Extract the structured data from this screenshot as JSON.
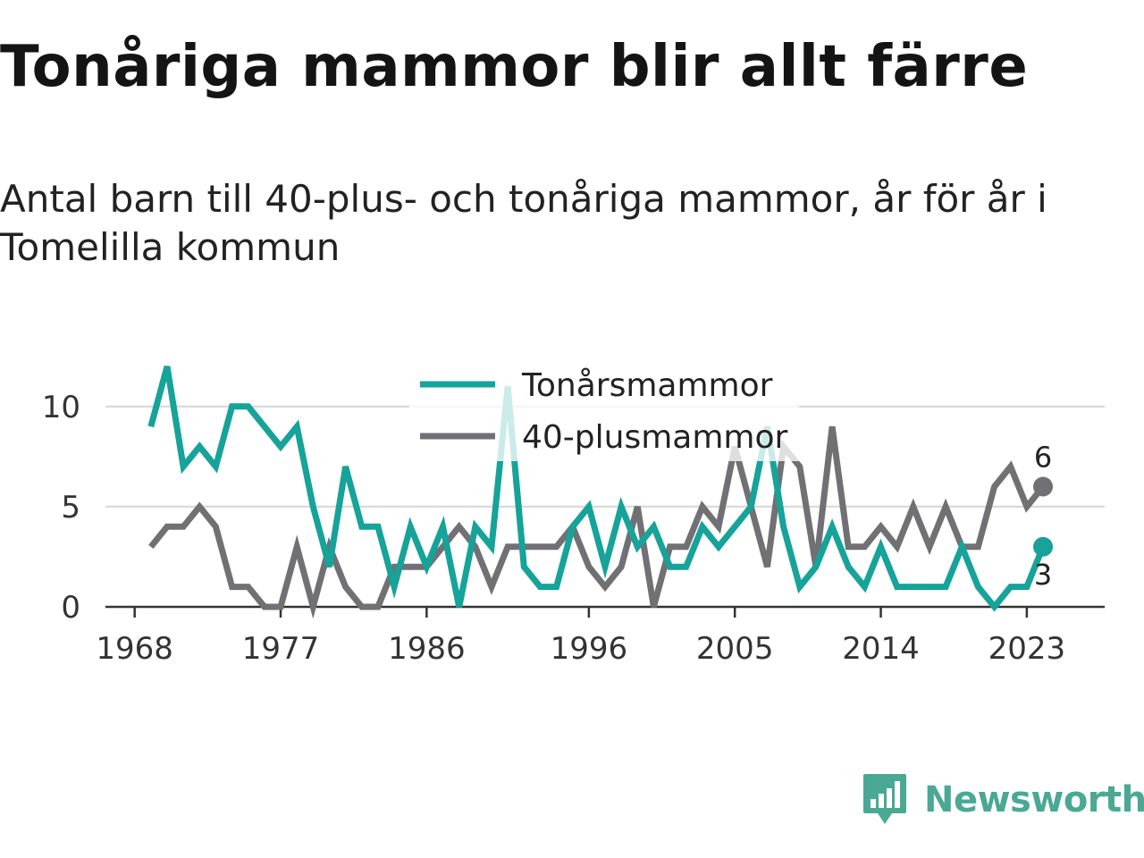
{
  "header": {
    "title": "Tonåriga mammor blir allt färre",
    "subtitle": "Antal barn till 40-plus- och tonåriga mammor, år för år i Tomelilla kommun"
  },
  "brand": {
    "name": "Newsworthy",
    "logo_icon": "bar-chart-badge-icon",
    "color": "#4aa894"
  },
  "chart_data": {
    "type": "line",
    "x": [
      1969,
      1970,
      1971,
      1972,
      1973,
      1974,
      1975,
      1976,
      1977,
      1978,
      1979,
      1980,
      1981,
      1982,
      1983,
      1984,
      1985,
      1986,
      1987,
      1988,
      1989,
      1990,
      1991,
      1992,
      1993,
      1994,
      1995,
      1996,
      1997,
      1998,
      1999,
      2000,
      2001,
      2002,
      2003,
      2004,
      2005,
      2006,
      2007,
      2008,
      2009,
      2010,
      2011,
      2012,
      2013,
      2014,
      2015,
      2016,
      2017,
      2018,
      2019,
      2020,
      2021,
      2022,
      2023,
      2024
    ],
    "x_ticks": [
      "1968",
      "1977",
      "1986",
      "1996",
      "2005",
      "2014",
      "2023"
    ],
    "x_tick_values": [
      1968,
      1977,
      1986,
      1996,
      2005,
      2014,
      2023
    ],
    "y_ticks": [
      "0",
      "5",
      "10"
    ],
    "y_tick_values": [
      0,
      5,
      10
    ],
    "ylim": [
      0,
      12
    ],
    "xlim": [
      1966.2,
      2027.8
    ],
    "grid": true,
    "legend_position": "top-center",
    "series": [
      {
        "name": "Tonårsmammor",
        "color": "#16a399",
        "values": [
          9,
          12,
          7,
          8,
          7,
          10,
          10,
          9,
          8,
          9,
          5,
          2,
          7,
          4,
          4,
          1,
          4,
          2,
          4,
          0,
          4,
          3,
          11,
          2,
          1,
          1,
          4,
          5,
          2,
          5,
          3,
          4,
          2,
          2,
          4,
          3,
          4,
          5,
          9,
          4,
          1,
          2,
          4,
          2,
          1,
          3,
          1,
          1,
          1,
          1,
          3,
          1,
          0,
          1,
          1,
          3
        ],
        "end_label": "3"
      },
      {
        "name": "40-plusmammor",
        "color": "#707075",
        "values": [
          3,
          4,
          4,
          5,
          4,
          1,
          1,
          0,
          0,
          3,
          0,
          3,
          1,
          0,
          0,
          2,
          2,
          2,
          3,
          4,
          3,
          1,
          3,
          3,
          3,
          3,
          4,
          2,
          1,
          2,
          5,
          0,
          3,
          3,
          5,
          4,
          8,
          5,
          2,
          8,
          7,
          2,
          9,
          3,
          3,
          4,
          3,
          5,
          3,
          5,
          3,
          3,
          6,
          7,
          5,
          6
        ],
        "end_label": "6"
      }
    ]
  }
}
